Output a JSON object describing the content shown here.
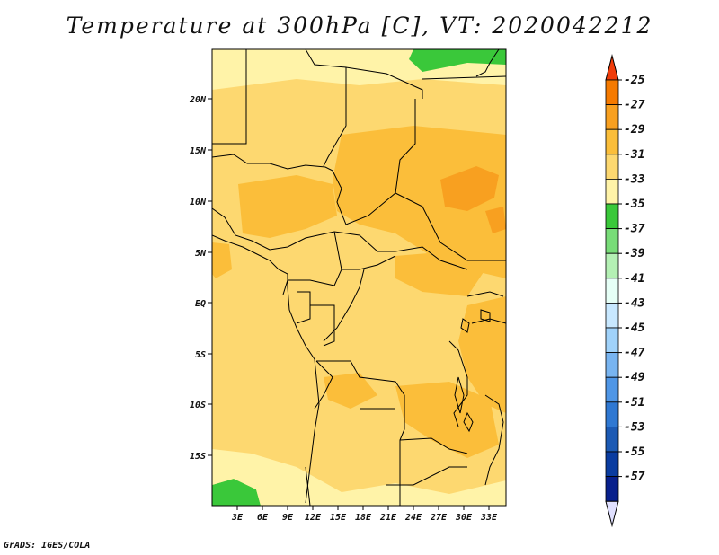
{
  "title": "Temperature at 300hPa [C], VT: 2020042212",
  "credit": "GrADS: IGES/COLA",
  "map": {
    "lat_labels": [
      "20N",
      "15N",
      "10N",
      "5N",
      "EQ",
      "5S",
      "10S",
      "15S"
    ],
    "lon_labels": [
      "3E",
      "6E",
      "9E",
      "12E",
      "15E",
      "18E",
      "21E",
      "24E",
      "27E",
      "30E",
      "33E"
    ]
  },
  "colorbar": {
    "levels": [
      "-25",
      "-27",
      "-29",
      "-31",
      "-33",
      "-35",
      "-37",
      "-39",
      "-41",
      "-43",
      "-45",
      "-47",
      "-49",
      "-51",
      "-53",
      "-55",
      "-57"
    ],
    "colors": [
      "#f03c0a",
      "#f57a00",
      "#f8a020",
      "#fbbe3a",
      "#fdd870",
      "#fff3a8",
      "#3ac83a",
      "#78dc78",
      "#b4f0b4",
      "#e6fff6",
      "#c8e8ff",
      "#a0d2fa",
      "#78b4f0",
      "#4f96e6",
      "#2f78d2",
      "#1c5ab4",
      "#0a3ca0",
      "#08208c",
      "#e0e0ff"
    ]
  }
}
